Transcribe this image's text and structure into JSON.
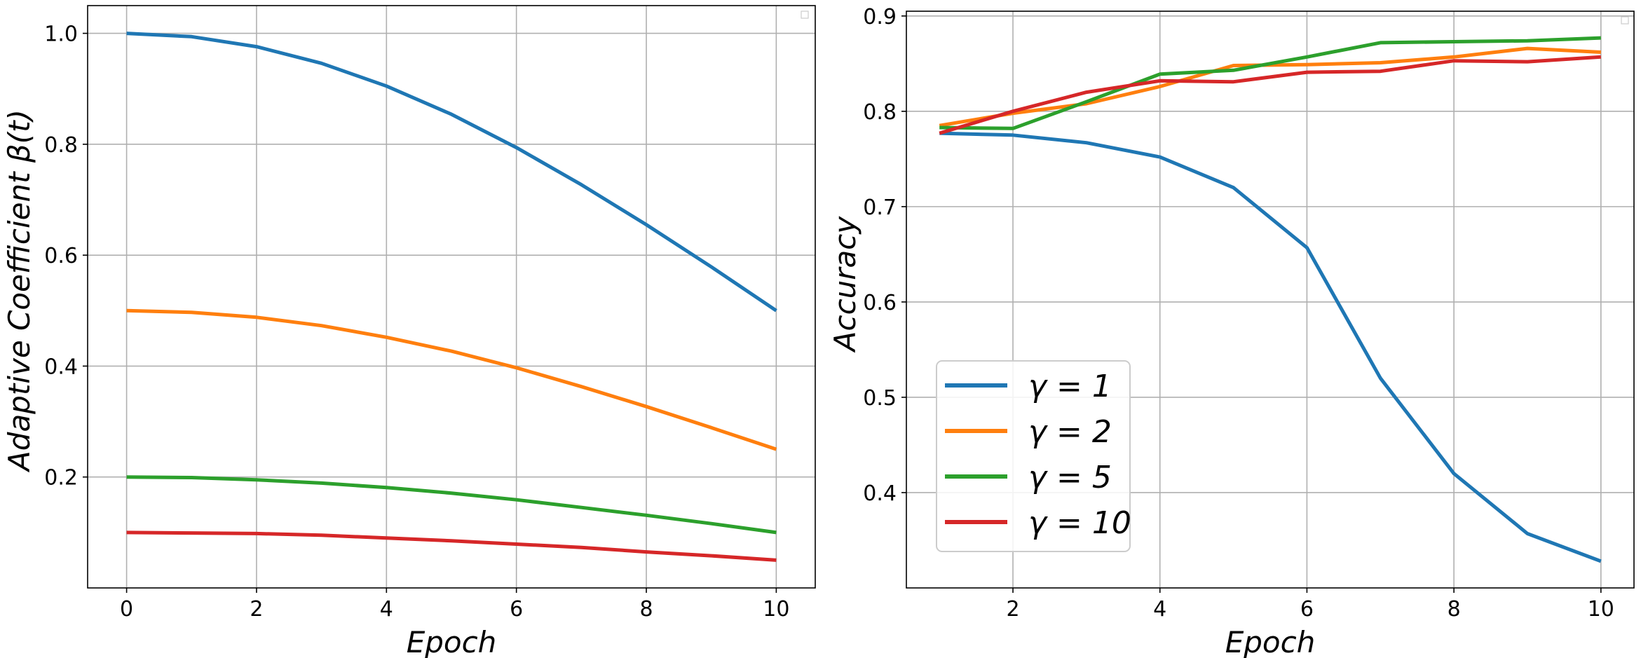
{
  "chart_data": [
    {
      "type": "line",
      "title": "",
      "xlabel": "Epoch",
      "ylabel": "Adaptive Coefficient β(t)",
      "xlim": [
        -0.6,
        10.6
      ],
      "ylim": [
        0.0,
        1.05
      ],
      "xticks": [
        0,
        2,
        4,
        6,
        8,
        10
      ],
      "xtick_labels": [
        "0",
        "2",
        "4",
        "6",
        "8",
        "10"
      ],
      "yticks": [
        0.2,
        0.4,
        0.6,
        0.8,
        1.0
      ],
      "ytick_labels": [
        "0.2",
        "0.4",
        "0.6",
        "0.8",
        "1.0"
      ],
      "grid": true,
      "legend": "top-right (empty)",
      "x": [
        0,
        1,
        2,
        3,
        4,
        5,
        6,
        7,
        8,
        9,
        10
      ],
      "series": [
        {
          "name": "γ = 1",
          "color": "#1f77b4",
          "values": [
            1.0,
            0.994,
            0.976,
            0.946,
            0.905,
            0.854,
            0.794,
            0.727,
            0.655,
            0.579,
            0.5
          ]
        },
        {
          "name": "γ = 2",
          "color": "#ff7f0e",
          "values": [
            0.5,
            0.497,
            0.488,
            0.473,
            0.452,
            0.427,
            0.397,
            0.363,
            0.327,
            0.289,
            0.25
          ]
        },
        {
          "name": "γ = 5",
          "color": "#2ca02c",
          "values": [
            0.2,
            0.199,
            0.195,
            0.189,
            0.181,
            0.171,
            0.159,
            0.145,
            0.131,
            0.116,
            0.1
          ]
        },
        {
          "name": "γ = 10",
          "color": "#d62728",
          "values": [
            0.1,
            0.099,
            0.098,
            0.095,
            0.09,
            0.085,
            0.079,
            0.073,
            0.065,
            0.058,
            0.05
          ]
        }
      ]
    },
    {
      "type": "line",
      "title": "",
      "xlabel": "Epoch",
      "ylabel": "Accuracy",
      "xlim": [
        0.55,
        10.45
      ],
      "ylim": [
        0.3,
        0.905
      ],
      "xticks": [
        2,
        4,
        6,
        8,
        10
      ],
      "xtick_labels": [
        "2",
        "4",
        "6",
        "8",
        "10"
      ],
      "yticks": [
        0.4,
        0.5,
        0.6,
        0.7,
        0.8,
        0.9
      ],
      "ytick_labels": [
        "0.4",
        "0.5",
        "0.6",
        "0.7",
        "0.8",
        "0.9"
      ],
      "grid": true,
      "legend": "lower-left",
      "x": [
        1,
        2,
        3,
        4,
        5,
        6,
        7,
        8,
        9,
        10
      ],
      "series": [
        {
          "name": "γ = 1",
          "color": "#1f77b4",
          "values": [
            0.777,
            0.775,
            0.767,
            0.752,
            0.72,
            0.657,
            0.52,
            0.42,
            0.357,
            0.328
          ]
        },
        {
          "name": "γ = 2",
          "color": "#ff7f0e",
          "values": [
            0.785,
            0.798,
            0.808,
            0.826,
            0.848,
            0.849,
            0.851,
            0.857,
            0.866,
            0.862
          ]
        },
        {
          "name": "γ = 5",
          "color": "#2ca02c",
          "values": [
            0.783,
            0.782,
            0.81,
            0.839,
            0.843,
            0.857,
            0.872,
            0.873,
            0.874,
            0.877
          ]
        },
        {
          "name": "γ = 10",
          "color": "#d62728",
          "values": [
            0.777,
            0.8,
            0.82,
            0.832,
            0.831,
            0.841,
            0.842,
            0.853,
            0.852,
            0.857
          ]
        }
      ]
    }
  ]
}
